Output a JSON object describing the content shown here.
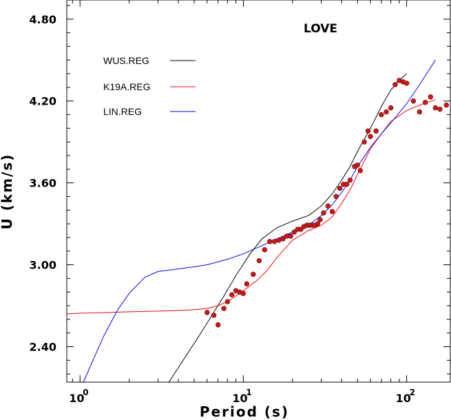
{
  "chart_data": {
    "type": "line",
    "title": "LOVE",
    "xlabel": "Period (s)",
    "ylabel": "U (km/s)",
    "x_scale": "log",
    "xlim": [
      0.83,
      185
    ],
    "ylim": [
      2.14,
      4.94
    ],
    "grid": false,
    "legend_position": "top-left",
    "x_tick_labels": [
      {
        "value": 1,
        "base": "10",
        "exp": "0"
      },
      {
        "value": 10,
        "base": "10",
        "exp": "1"
      },
      {
        "value": 100,
        "base": "10",
        "exp": "2"
      }
    ],
    "y_ticks": [
      2.4,
      3.0,
      3.6,
      4.2,
      4.8
    ],
    "y_tick_labels": [
      "2.40",
      "3.00",
      "3.60",
      "4.20",
      "4.80"
    ],
    "series": [
      {
        "name": "WUS.REG",
        "color": "#000000",
        "x": [
          3.5,
          4.5,
          5.5,
          6.5,
          7.5,
          9,
          11,
          13,
          16,
          20,
          25,
          30,
          35,
          40,
          45,
          50,
          60,
          70,
          80,
          90,
          100
        ],
        "y": [
          2.14,
          2.34,
          2.5,
          2.64,
          2.76,
          2.92,
          3.08,
          3.19,
          3.27,
          3.32,
          3.36,
          3.43,
          3.52,
          3.62,
          3.72,
          3.83,
          4.0,
          4.16,
          4.28,
          4.35,
          4.4
        ]
      },
      {
        "name": "K19A.REG",
        "color": "#ff0000",
        "x": [
          0.83,
          1,
          2,
          3,
          4,
          5,
          6,
          7,
          8,
          9,
          10,
          12,
          14,
          16,
          18,
          20,
          25,
          30,
          35,
          40,
          45,
          50,
          55,
          60,
          70,
          80,
          100,
          120,
          150
        ],
        "y": [
          2.64,
          2.645,
          2.655,
          2.66,
          2.665,
          2.67,
          2.68,
          2.7,
          2.73,
          2.77,
          2.81,
          2.88,
          2.96,
          3.05,
          3.12,
          3.18,
          3.25,
          3.29,
          3.35,
          3.45,
          3.55,
          3.66,
          3.76,
          3.85,
          3.96,
          4.05,
          4.13,
          4.17,
          4.21
        ]
      },
      {
        "name": "LIN.REG",
        "color": "#0000ff",
        "x": [
          1.05,
          1.2,
          1.4,
          1.7,
          2.0,
          2.5,
          3.0,
          4.0,
          5.0,
          6.0,
          8.0,
          10,
          13,
          16,
          20,
          25,
          30,
          35,
          40,
          45,
          50,
          60,
          70,
          80,
          100,
          120,
          150
        ],
        "y": [
          2.14,
          2.3,
          2.48,
          2.67,
          2.79,
          2.91,
          2.95,
          2.97,
          2.985,
          3.0,
          3.04,
          3.08,
          3.14,
          3.19,
          3.24,
          3.29,
          3.36,
          3.44,
          3.53,
          3.62,
          3.72,
          3.86,
          3.96,
          4.04,
          4.18,
          4.32,
          4.5
        ]
      }
    ],
    "observed": {
      "name": "observed",
      "fill": "#ff0000",
      "x": [
        6,
        6.6,
        7,
        7.6,
        8,
        8.5,
        9,
        9.5,
        10,
        10.5,
        11.5,
        12.5,
        13.5,
        14.5,
        15.5,
        16.5,
        17.5,
        18.5,
        19.5,
        20.5,
        21.5,
        22.5,
        23.5,
        24.5,
        25.5,
        26.5,
        27.5,
        28.5,
        29.5,
        31,
        33,
        35,
        37,
        39,
        41,
        43,
        45,
        48,
        50,
        52,
        55,
        58,
        60,
        65,
        70,
        75,
        80,
        85,
        90,
        95,
        100,
        110,
        120,
        130,
        140,
        150,
        160,
        175
      ],
      "y": [
        2.65,
        2.63,
        2.56,
        2.68,
        2.73,
        2.78,
        2.81,
        2.8,
        2.79,
        2.86,
        2.93,
        3.03,
        3.11,
        3.17,
        3.17,
        3.18,
        3.19,
        3.21,
        3.21,
        3.24,
        3.26,
        3.26,
        3.28,
        3.29,
        3.29,
        3.29,
        3.29,
        3.3,
        3.33,
        3.38,
        3.43,
        3.39,
        3.5,
        3.56,
        3.59,
        3.59,
        3.62,
        3.72,
        3.73,
        3.69,
        3.9,
        3.98,
        3.94,
        3.98,
        4.1,
        4.12,
        4.15,
        4.32,
        4.35,
        4.34,
        4.33,
        4.2,
        4.12,
        4.19,
        4.23,
        4.15,
        4.14,
        4.17
      ]
    }
  }
}
